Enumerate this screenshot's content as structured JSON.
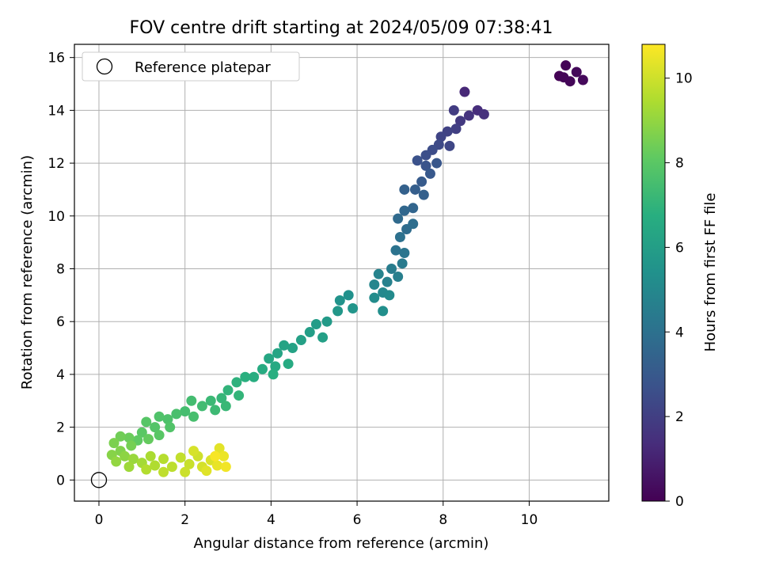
{
  "chart_data": {
    "type": "scatter",
    "title": "FOV centre drift starting at 2024/05/09 07:38:41",
    "xlabel": "Angular distance from reference (arcmin)",
    "ylabel": "Rotation from reference (arcmin)",
    "colorbar_label": "Hours from first FF file",
    "xlim": [
      -0.57,
      11.85
    ],
    "ylim": [
      -0.8,
      16.5
    ],
    "clim": [
      0,
      10.8
    ],
    "xticks": [
      0,
      2,
      4,
      6,
      8,
      10
    ],
    "yticks": [
      0,
      2,
      4,
      6,
      8,
      10,
      12,
      14,
      16
    ],
    "cticks": [
      0,
      2,
      4,
      6,
      8,
      10
    ],
    "grid": true,
    "legend_position": "top-left",
    "colormap": "viridis",
    "reference": {
      "label": "Reference platepar",
      "x": 0,
      "y": 0
    },
    "series": [
      {
        "name": "",
        "points": [
          {
            "x": 10.7,
            "y": 15.3,
            "h": 0.05
          },
          {
            "x": 10.85,
            "y": 15.7,
            "h": 0.1
          },
          {
            "x": 10.8,
            "y": 15.25,
            "h": 0.12
          },
          {
            "x": 10.95,
            "y": 15.1,
            "h": 0.15
          },
          {
            "x": 11.1,
            "y": 15.45,
            "h": 0.2
          },
          {
            "x": 11.25,
            "y": 15.15,
            "h": 0.25
          },
          {
            "x": 8.5,
            "y": 14.7,
            "h": 1.2
          },
          {
            "x": 8.8,
            "y": 14.0,
            "h": 1.4
          },
          {
            "x": 8.95,
            "y": 13.85,
            "h": 1.5
          },
          {
            "x": 8.6,
            "y": 13.8,
            "h": 1.6
          },
          {
            "x": 8.4,
            "y": 13.6,
            "h": 1.8
          },
          {
            "x": 8.25,
            "y": 14.0,
            "h": 1.9
          },
          {
            "x": 8.3,
            "y": 13.3,
            "h": 2.0
          },
          {
            "x": 8.1,
            "y": 13.2,
            "h": 2.1
          },
          {
            "x": 7.95,
            "y": 13.0,
            "h": 2.2
          },
          {
            "x": 8.15,
            "y": 12.65,
            "h": 2.3
          },
          {
            "x": 7.9,
            "y": 12.7,
            "h": 2.4
          },
          {
            "x": 7.75,
            "y": 12.5,
            "h": 2.5
          },
          {
            "x": 7.6,
            "y": 12.3,
            "h": 2.6
          },
          {
            "x": 7.4,
            "y": 12.1,
            "h": 2.7
          },
          {
            "x": 7.6,
            "y": 11.9,
            "h": 2.8
          },
          {
            "x": 7.85,
            "y": 12.0,
            "h": 2.9
          },
          {
            "x": 7.7,
            "y": 11.6,
            "h": 3.0
          },
          {
            "x": 7.5,
            "y": 11.3,
            "h": 3.1
          },
          {
            "x": 7.35,
            "y": 11.0,
            "h": 3.2
          },
          {
            "x": 7.55,
            "y": 10.8,
            "h": 3.3
          },
          {
            "x": 7.1,
            "y": 11.0,
            "h": 3.35
          },
          {
            "x": 7.3,
            "y": 10.3,
            "h": 3.5
          },
          {
            "x": 7.1,
            "y": 10.2,
            "h": 3.6
          },
          {
            "x": 6.95,
            "y": 9.9,
            "h": 3.7
          },
          {
            "x": 7.15,
            "y": 9.5,
            "h": 3.8
          },
          {
            "x": 7.3,
            "y": 9.7,
            "h": 3.9
          },
          {
            "x": 7.0,
            "y": 9.2,
            "h": 4.0
          },
          {
            "x": 6.9,
            "y": 8.7,
            "h": 4.1
          },
          {
            "x": 7.1,
            "y": 8.6,
            "h": 4.2
          },
          {
            "x": 7.05,
            "y": 8.2,
            "h": 4.4
          },
          {
            "x": 6.8,
            "y": 8.0,
            "h": 4.5
          },
          {
            "x": 6.95,
            "y": 7.7,
            "h": 4.6
          },
          {
            "x": 6.7,
            "y": 7.5,
            "h": 4.7
          },
          {
            "x": 6.5,
            "y": 7.8,
            "h": 4.8
          },
          {
            "x": 6.4,
            "y": 7.4,
            "h": 4.9
          },
          {
            "x": 6.6,
            "y": 7.1,
            "h": 5.0
          },
          {
            "x": 6.75,
            "y": 7.0,
            "h": 5.1
          },
          {
            "x": 6.4,
            "y": 6.9,
            "h": 5.2
          },
          {
            "x": 6.6,
            "y": 6.4,
            "h": 5.3
          },
          {
            "x": 5.8,
            "y": 7.0,
            "h": 5.4
          },
          {
            "x": 5.6,
            "y": 6.8,
            "h": 5.5
          },
          {
            "x": 5.9,
            "y": 6.5,
            "h": 5.6
          },
          {
            "x": 5.55,
            "y": 6.4,
            "h": 5.7
          },
          {
            "x": 5.3,
            "y": 6.0,
            "h": 5.8
          },
          {
            "x": 5.05,
            "y": 5.9,
            "h": 5.9
          },
          {
            "x": 4.9,
            "y": 5.6,
            "h": 6.0
          },
          {
            "x": 5.2,
            "y": 5.4,
            "h": 6.05
          },
          {
            "x": 4.7,
            "y": 5.3,
            "h": 6.1
          },
          {
            "x": 4.5,
            "y": 5.0,
            "h": 6.2
          },
          {
            "x": 4.3,
            "y": 5.1,
            "h": 6.25
          },
          {
            "x": 4.15,
            "y": 4.8,
            "h": 6.3
          },
          {
            "x": 3.95,
            "y": 4.6,
            "h": 6.4
          },
          {
            "x": 4.1,
            "y": 4.3,
            "h": 6.5
          },
          {
            "x": 4.4,
            "y": 4.4,
            "h": 6.55
          },
          {
            "x": 3.8,
            "y": 4.2,
            "h": 6.6
          },
          {
            "x": 3.6,
            "y": 3.9,
            "h": 6.7
          },
          {
            "x": 4.05,
            "y": 4.0,
            "h": 6.75
          },
          {
            "x": 3.4,
            "y": 3.9,
            "h": 6.8
          },
          {
            "x": 3.2,
            "y": 3.7,
            "h": 6.9
          },
          {
            "x": 3.0,
            "y": 3.4,
            "h": 7.0
          },
          {
            "x": 3.25,
            "y": 3.2,
            "h": 7.05
          },
          {
            "x": 2.85,
            "y": 3.1,
            "h": 7.1
          },
          {
            "x": 2.95,
            "y": 2.8,
            "h": 7.2
          },
          {
            "x": 2.6,
            "y": 3.0,
            "h": 7.25
          },
          {
            "x": 2.7,
            "y": 2.65,
            "h": 7.3
          },
          {
            "x": 2.4,
            "y": 2.8,
            "h": 7.4
          },
          {
            "x": 2.15,
            "y": 3.0,
            "h": 7.45
          },
          {
            "x": 2.0,
            "y": 2.6,
            "h": 7.5
          },
          {
            "x": 2.2,
            "y": 2.4,
            "h": 7.55
          },
          {
            "x": 1.8,
            "y": 2.5,
            "h": 7.6
          },
          {
            "x": 1.6,
            "y": 2.3,
            "h": 7.7
          },
          {
            "x": 1.4,
            "y": 2.4,
            "h": 7.75
          },
          {
            "x": 1.65,
            "y": 2.0,
            "h": 7.8
          },
          {
            "x": 1.3,
            "y": 2.0,
            "h": 7.85
          },
          {
            "x": 1.1,
            "y": 2.2,
            "h": 7.9
          },
          {
            "x": 1.4,
            "y": 1.7,
            "h": 7.95
          },
          {
            "x": 1.0,
            "y": 1.8,
            "h": 8.0
          },
          {
            "x": 0.9,
            "y": 1.5,
            "h": 8.1
          },
          {
            "x": 1.15,
            "y": 1.55,
            "h": 8.2
          },
          {
            "x": 0.7,
            "y": 1.6,
            "h": 8.3
          },
          {
            "x": 0.5,
            "y": 1.65,
            "h": 8.4
          },
          {
            "x": 0.75,
            "y": 1.3,
            "h": 8.5
          },
          {
            "x": 0.35,
            "y": 1.4,
            "h": 8.6
          },
          {
            "x": 0.5,
            "y": 1.1,
            "h": 8.7
          },
          {
            "x": 0.3,
            "y": 0.95,
            "h": 8.8
          },
          {
            "x": 0.6,
            "y": 0.9,
            "h": 8.9
          },
          {
            "x": 0.4,
            "y": 0.7,
            "h": 9.0
          },
          {
            "x": 0.8,
            "y": 0.8,
            "h": 9.1
          },
          {
            "x": 0.7,
            "y": 0.5,
            "h": 9.2
          },
          {
            "x": 1.0,
            "y": 0.65,
            "h": 9.3
          },
          {
            "x": 1.2,
            "y": 0.9,
            "h": 9.4
          },
          {
            "x": 1.3,
            "y": 0.55,
            "h": 9.5
          },
          {
            "x": 1.1,
            "y": 0.4,
            "h": 9.55
          },
          {
            "x": 1.5,
            "y": 0.8,
            "h": 9.6
          },
          {
            "x": 1.7,
            "y": 0.5,
            "h": 9.7
          },
          {
            "x": 1.5,
            "y": 0.3,
            "h": 9.75
          },
          {
            "x": 1.9,
            "y": 0.85,
            "h": 9.8
          },
          {
            "x": 2.1,
            "y": 0.6,
            "h": 9.9
          },
          {
            "x": 2.0,
            "y": 0.3,
            "h": 9.95
          },
          {
            "x": 2.3,
            "y": 0.9,
            "h": 10.0
          },
          {
            "x": 2.4,
            "y": 0.5,
            "h": 10.1
          },
          {
            "x": 2.2,
            "y": 1.1,
            "h": 10.15
          },
          {
            "x": 2.6,
            "y": 0.75,
            "h": 10.2
          },
          {
            "x": 2.5,
            "y": 0.35,
            "h": 10.3
          },
          {
            "x": 2.8,
            "y": 1.2,
            "h": 10.35
          },
          {
            "x": 2.75,
            "y": 0.55,
            "h": 10.45
          },
          {
            "x": 2.9,
            "y": 0.9,
            "h": 10.5
          },
          {
            "x": 2.95,
            "y": 0.5,
            "h": 10.6
          },
          {
            "x": 2.7,
            "y": 0.9,
            "h": 10.7
          }
        ]
      }
    ]
  }
}
